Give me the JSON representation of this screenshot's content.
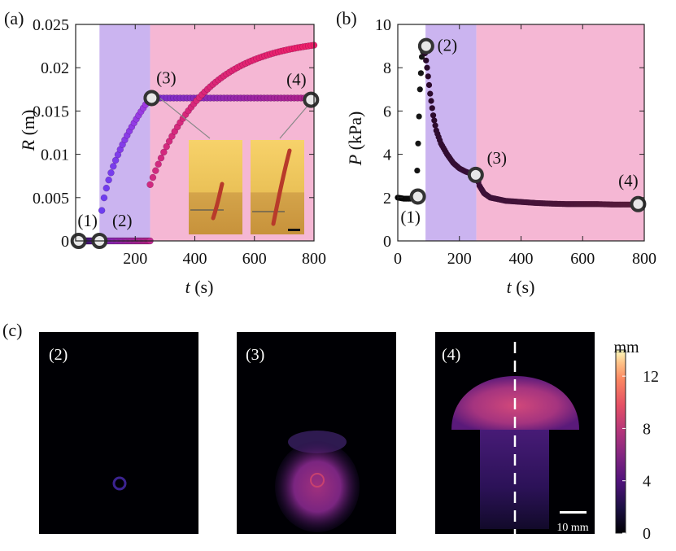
{
  "panels": {
    "a": "(a)",
    "b": "(b)",
    "c": "(c)"
  },
  "chart_data": [
    {
      "type": "scatter",
      "panel": "(a)",
      "xlabel": "t",
      "xunit": "(s)",
      "ylabel": "R",
      "yunit": "(m)",
      "xlim": [
        0,
        800
      ],
      "ylim": [
        0,
        0.025
      ],
      "xticks": [
        "200",
        "400",
        "600",
        "800"
      ],
      "yticks": [
        "0",
        "0.005",
        "0.01",
        "0.015",
        "0.02",
        "0.025"
      ],
      "shaded_regions": [
        {
          "x": [
            80,
            250
          ],
          "color": "#cbb4f0"
        },
        {
          "x": [
            250,
            800
          ],
          "color": "#f5b7d4"
        }
      ],
      "series": [
        {
          "color_start": "#1a0c2e",
          "color_end": "#7a2ee0",
          "x": [
            0,
            80
          ],
          "y": [
            0,
            0
          ]
        },
        {
          "color_start": "#6a3ef0",
          "color_end": "#a43ae0",
          "x": [
            80,
            250
          ],
          "y": [
            0,
            0.0165
          ],
          "shape": "sqrt"
        },
        {
          "color_start": "#8a2ed0",
          "color_end": "#c02a90",
          "x": [
            90,
            250
          ],
          "y": [
            0,
            0
          ],
          "shape": "flat"
        },
        {
          "color_start": "#7a2ed0",
          "color_end": "#b0208a",
          "x": [
            250,
            790
          ],
          "y": [
            0.0165,
            0.0165
          ],
          "shape": "flat"
        },
        {
          "color_start": "#d02a80",
          "color_end": "#f01f6a",
          "x": [
            250,
            800
          ],
          "y": [
            0.0065,
            0.0226
          ],
          "shape": "grow"
        }
      ],
      "markers": [
        {
          "label": "(1)",
          "x": 10,
          "y": 0
        },
        {
          "label": "(2)",
          "x": 80,
          "y": 0
        },
        {
          "label": "(3)",
          "x": 255,
          "y": 0.0165
        },
        {
          "label": "(4)",
          "x": 790,
          "y": 0.0163
        }
      ]
    },
    {
      "type": "scatter",
      "panel": "(b)",
      "xlabel": "t",
      "xunit": "(s)",
      "ylabel": "P",
      "yunit": "(kPa)",
      "xlim": [
        0,
        800
      ],
      "ylim": [
        0,
        10
      ],
      "xticks": [
        "0",
        "200",
        "400",
        "600",
        "800"
      ],
      "yticks": [
        "0",
        "2",
        "4",
        "6",
        "8",
        "10"
      ],
      "shaded_regions": [
        {
          "x": [
            90,
            255
          ],
          "color": "#cbb4f0"
        },
        {
          "x": [
            255,
            800
          ],
          "color": "#f5b7d4"
        }
      ],
      "points": [
        [
          0,
          2.0
        ],
        [
          20,
          1.95
        ],
        [
          40,
          1.95
        ],
        [
          60,
          2.0
        ],
        [
          66,
          4.5
        ],
        [
          72,
          7.0
        ],
        [
          78,
          8.5
        ],
        [
          85,
          9.0
        ],
        [
          95,
          8.0
        ],
        [
          105,
          6.8
        ],
        [
          115,
          5.8
        ],
        [
          125,
          5.1
        ],
        [
          140,
          4.5
        ],
        [
          160,
          4.0
        ],
        [
          180,
          3.6
        ],
        [
          200,
          3.35
        ],
        [
          220,
          3.2
        ],
        [
          240,
          3.1
        ],
        [
          255,
          3.05
        ],
        [
          265,
          2.55
        ],
        [
          280,
          2.2
        ],
        [
          300,
          2.0
        ],
        [
          350,
          1.85
        ],
        [
          400,
          1.8
        ],
        [
          450,
          1.75
        ],
        [
          500,
          1.72
        ],
        [
          550,
          1.7
        ],
        [
          600,
          1.7
        ],
        [
          650,
          1.7
        ],
        [
          700,
          1.68
        ],
        [
          750,
          1.68
        ],
        [
          780,
          1.68
        ]
      ],
      "markers": [
        {
          "label": "(1)",
          "x": 65,
          "y": 2.05
        },
        {
          "label": "(2)",
          "x": 92,
          "y": 9.0
        },
        {
          "label": "(3)",
          "x": 253,
          "y": 3.05
        },
        {
          "label": "(4)",
          "x": 780,
          "y": 1.7
        }
      ]
    }
  ],
  "images": [
    {
      "label": "(2)"
    },
    {
      "label": "(3)"
    },
    {
      "label": "(4)",
      "scalebar": "10 mm"
    }
  ],
  "colorbar": {
    "unit": "mm",
    "ticks": [
      "0",
      "4",
      "8",
      "12"
    ],
    "range": [
      0,
      14
    ]
  }
}
